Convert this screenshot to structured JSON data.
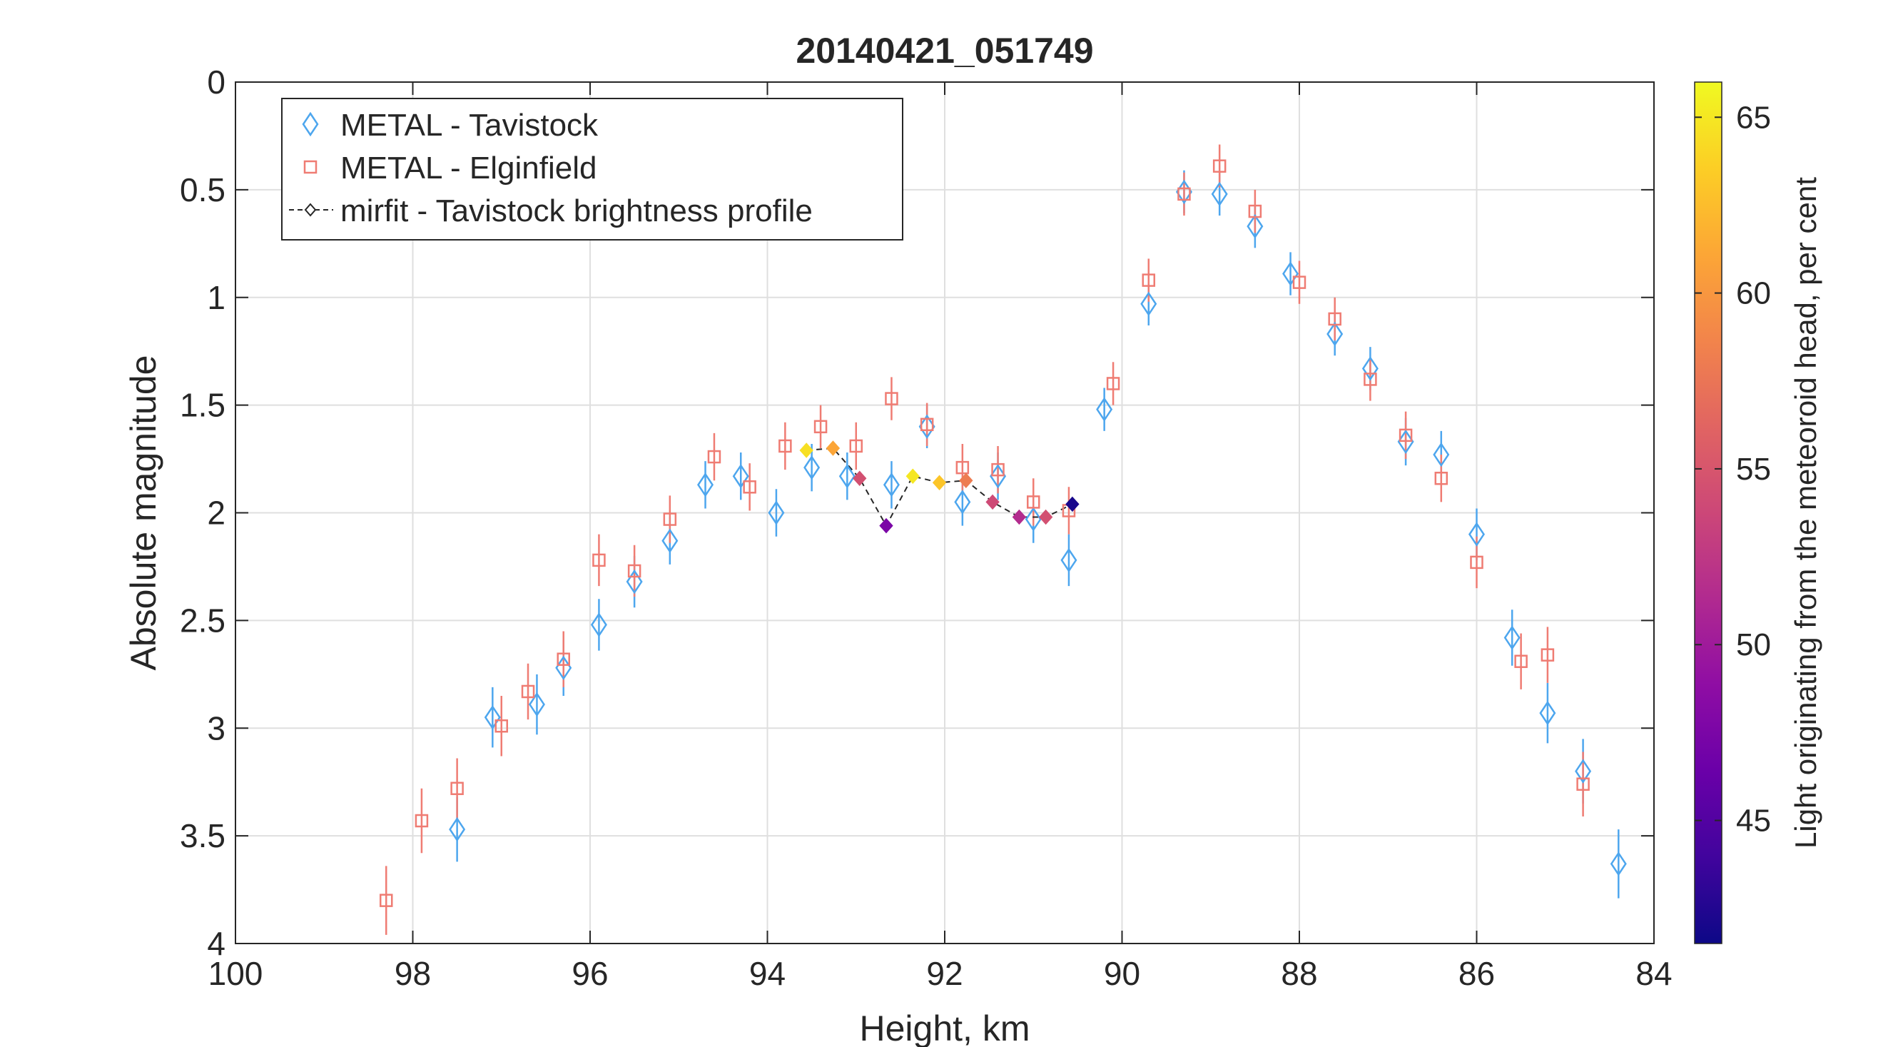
{
  "chart_data": {
    "type": "scatter",
    "title": "20140421_051749",
    "xlabel": "Height, km",
    "ylabel": "Absolute magnitude",
    "xlim": [
      100,
      84
    ],
    "ylim": [
      0,
      4
    ],
    "x_reversed": true,
    "y_reversed": true,
    "xticks": [
      100,
      98,
      96,
      94,
      92,
      90,
      88,
      86,
      84
    ],
    "yticks": [
      0,
      0.5,
      1,
      1.5,
      2,
      2.5,
      3,
      3.5,
      4
    ],
    "xtick_labels": [
      "100",
      "98",
      "96",
      "94",
      "92",
      "90",
      "88",
      "86",
      "84"
    ],
    "ytick_labels": [
      "0",
      "0.5",
      "1",
      "1.5",
      "2",
      "2.5",
      "3",
      "3.5",
      "4"
    ],
    "grid": true,
    "legend_position": "top-left",
    "series": [
      {
        "name": "METAL - Tavistock",
        "marker": "diamond",
        "color": "#4DA6EE",
        "points": [
          {
            "x": 97.5,
            "y": 3.47,
            "err": 0.15
          },
          {
            "x": 97.1,
            "y": 2.95,
            "err": 0.14
          },
          {
            "x": 96.6,
            "y": 2.89,
            "err": 0.14
          },
          {
            "x": 96.3,
            "y": 2.72,
            "err": 0.13
          },
          {
            "x": 95.9,
            "y": 2.52,
            "err": 0.12
          },
          {
            "x": 95.5,
            "y": 2.32,
            "err": 0.12
          },
          {
            "x": 95.1,
            "y": 2.13,
            "err": 0.11
          },
          {
            "x": 94.7,
            "y": 1.87,
            "err": 0.11
          },
          {
            "x": 94.3,
            "y": 1.83,
            "err": 0.11
          },
          {
            "x": 93.9,
            "y": 2.0,
            "err": 0.11
          },
          {
            "x": 93.5,
            "y": 1.79,
            "err": 0.11
          },
          {
            "x": 93.1,
            "y": 1.83,
            "err": 0.11
          },
          {
            "x": 92.6,
            "y": 1.87,
            "err": 0.11
          },
          {
            "x": 92.2,
            "y": 1.6,
            "err": 0.1
          },
          {
            "x": 91.8,
            "y": 1.95,
            "err": 0.11
          },
          {
            "x": 91.4,
            "y": 1.83,
            "err": 0.11
          },
          {
            "x": 91.0,
            "y": 2.03,
            "err": 0.11
          },
          {
            "x": 90.6,
            "y": 2.22,
            "err": 0.12
          },
          {
            "x": 90.2,
            "y": 1.52,
            "err": 0.1
          },
          {
            "x": 89.7,
            "y": 1.03,
            "err": 0.1
          },
          {
            "x": 89.3,
            "y": 0.51,
            "err": 0.1
          },
          {
            "x": 88.9,
            "y": 0.52,
            "err": 0.1
          },
          {
            "x": 88.5,
            "y": 0.67,
            "err": 0.1
          },
          {
            "x": 88.1,
            "y": 0.89,
            "err": 0.1
          },
          {
            "x": 87.6,
            "y": 1.17,
            "err": 0.1
          },
          {
            "x": 87.2,
            "y": 1.33,
            "err": 0.1
          },
          {
            "x": 86.8,
            "y": 1.67,
            "err": 0.11
          },
          {
            "x": 86.4,
            "y": 1.73,
            "err": 0.11
          },
          {
            "x": 86.0,
            "y": 2.1,
            "err": 0.12
          },
          {
            "x": 85.6,
            "y": 2.58,
            "err": 0.13
          },
          {
            "x": 85.2,
            "y": 2.93,
            "err": 0.14
          },
          {
            "x": 84.8,
            "y": 3.2,
            "err": 0.15
          },
          {
            "x": 84.4,
            "y": 3.63,
            "err": 0.16
          }
        ]
      },
      {
        "name": "METAL - Elginfield",
        "marker": "square",
        "color": "#EF7C73",
        "points": [
          {
            "x": 98.3,
            "y": 3.8,
            "err": 0.16
          },
          {
            "x": 97.9,
            "y": 3.43,
            "err": 0.15
          },
          {
            "x": 97.5,
            "y": 3.28,
            "err": 0.14
          },
          {
            "x": 97.0,
            "y": 2.99,
            "err": 0.14
          },
          {
            "x": 96.7,
            "y": 2.83,
            "err": 0.13
          },
          {
            "x": 96.3,
            "y": 2.68,
            "err": 0.13
          },
          {
            "x": 95.9,
            "y": 2.22,
            "err": 0.12
          },
          {
            "x": 95.5,
            "y": 2.27,
            "err": 0.12
          },
          {
            "x": 95.1,
            "y": 2.03,
            "err": 0.11
          },
          {
            "x": 94.6,
            "y": 1.74,
            "err": 0.11
          },
          {
            "x": 94.2,
            "y": 1.88,
            "err": 0.11
          },
          {
            "x": 93.8,
            "y": 1.69,
            "err": 0.11
          },
          {
            "x": 93.4,
            "y": 1.6,
            "err": 0.1
          },
          {
            "x": 93.0,
            "y": 1.69,
            "err": 0.11
          },
          {
            "x": 92.6,
            "y": 1.47,
            "err": 0.1
          },
          {
            "x": 92.2,
            "y": 1.59,
            "err": 0.1
          },
          {
            "x": 91.8,
            "y": 1.79,
            "err": 0.11
          },
          {
            "x": 91.4,
            "y": 1.8,
            "err": 0.11
          },
          {
            "x": 91.0,
            "y": 1.95,
            "err": 0.11
          },
          {
            "x": 90.6,
            "y": 1.99,
            "err": 0.11
          },
          {
            "x": 90.1,
            "y": 1.4,
            "err": 0.1
          },
          {
            "x": 89.7,
            "y": 0.92,
            "err": 0.1
          },
          {
            "x": 89.3,
            "y": 0.52,
            "err": 0.1
          },
          {
            "x": 88.9,
            "y": 0.39,
            "err": 0.1
          },
          {
            "x": 88.5,
            "y": 0.6,
            "err": 0.1
          },
          {
            "x": 88.0,
            "y": 0.93,
            "err": 0.1
          },
          {
            "x": 87.6,
            "y": 1.1,
            "err": 0.1
          },
          {
            "x": 87.2,
            "y": 1.38,
            "err": 0.1
          },
          {
            "x": 86.8,
            "y": 1.64,
            "err": 0.11
          },
          {
            "x": 86.4,
            "y": 1.84,
            "err": 0.11
          },
          {
            "x": 86.0,
            "y": 2.23,
            "err": 0.12
          },
          {
            "x": 85.5,
            "y": 2.69,
            "err": 0.13
          },
          {
            "x": 85.2,
            "y": 2.66,
            "err": 0.13
          },
          {
            "x": 84.8,
            "y": 3.26,
            "err": 0.15
          }
        ]
      },
      {
        "name": "mirfit - Tavistock brightness profile",
        "marker": "diamond-filled",
        "line": "dashed",
        "color": "#222222",
        "points": [
          {
            "x": 93.56,
            "y": 1.71,
            "c": 64.5
          },
          {
            "x": 93.26,
            "y": 1.7,
            "c": 61.0
          },
          {
            "x": 92.96,
            "y": 1.84,
            "c": 54.5
          },
          {
            "x": 92.66,
            "y": 2.06,
            "c": 47.5
          },
          {
            "x": 92.36,
            "y": 1.83,
            "c": 65.0
          },
          {
            "x": 92.06,
            "y": 1.86,
            "c": 63.0
          },
          {
            "x": 91.76,
            "y": 1.85,
            "c": 58.0
          },
          {
            "x": 91.46,
            "y": 1.95,
            "c": 54.0
          },
          {
            "x": 91.16,
            "y": 2.02,
            "c": 51.5
          },
          {
            "x": 90.86,
            "y": 2.02,
            "c": 54.5
          },
          {
            "x": 90.56,
            "y": 1.96,
            "c": 42.0
          }
        ]
      }
    ],
    "colorbar": {
      "label": "Light originating from the meteoroid head, per cent",
      "range": [
        41.5,
        66
      ],
      "ticks": [
        45,
        50,
        55,
        60,
        65
      ],
      "tick_labels": [
        "45",
        "50",
        "55",
        "60",
        "65"
      ],
      "colormap": "plasma",
      "stops": [
        "#0d0887",
        "#41049d",
        "#6a00a8",
        "#8f0da4",
        "#b12a90",
        "#cc4778",
        "#e16462",
        "#f2844b",
        "#fca636",
        "#fcce25",
        "#f0f921"
      ]
    }
  }
}
